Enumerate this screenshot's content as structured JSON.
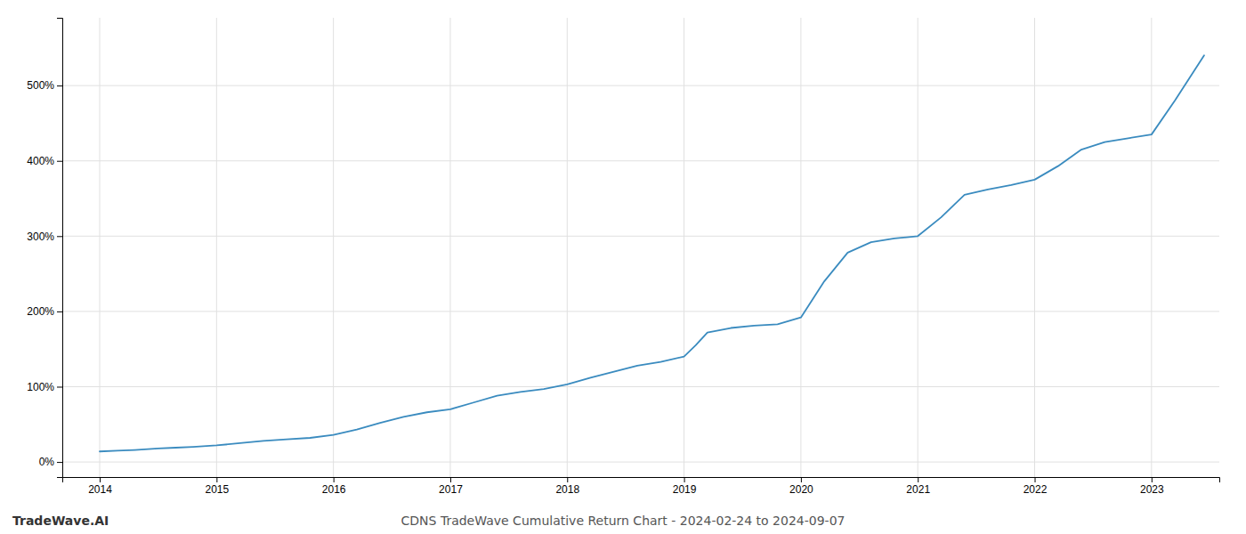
{
  "chart_data": {
    "type": "line",
    "title": "CDNS TradeWave Cumulative Return Chart - 2024-02-24 to 2024-09-07",
    "annotations": [
      "TradeWave.AI"
    ],
    "x": [
      2014.0,
      2014.15,
      2014.3,
      2014.5,
      2014.65,
      2014.8,
      2015.0,
      2015.2,
      2015.4,
      2015.6,
      2015.8,
      2016.0,
      2016.2,
      2016.4,
      2016.6,
      2016.8,
      2017.0,
      2017.2,
      2017.4,
      2017.6,
      2017.8,
      2018.0,
      2018.2,
      2018.4,
      2018.6,
      2018.8,
      2019.0,
      2019.1,
      2019.2,
      2019.4,
      2019.6,
      2019.8,
      2020.0,
      2020.2,
      2020.4,
      2020.6,
      2020.8,
      2021.0,
      2021.2,
      2021.4,
      2021.6,
      2021.8,
      2022.0,
      2022.2,
      2022.4,
      2022.6,
      2022.8,
      2023.0,
      2023.2,
      2023.45
    ],
    "values": [
      14,
      15,
      16,
      18,
      19,
      20,
      22,
      25,
      28,
      30,
      32,
      36,
      43,
      52,
      60,
      66,
      70,
      79,
      88,
      93,
      97,
      103,
      112,
      120,
      128,
      133,
      140,
      155,
      172,
      178,
      181,
      183,
      192,
      240,
      278,
      292,
      297,
      300,
      325,
      355,
      362,
      368,
      375,
      393,
      415,
      425,
      430,
      435,
      480,
      540
    ],
    "color": "#3a8bbf",
    "xlim": [
      2013.68,
      2023.58
    ],
    "xticks": [
      2014,
      2015,
      2016,
      2017,
      2018,
      2019,
      2020,
      2021,
      2022,
      2023
    ],
    "ylim": [
      -20,
      590
    ],
    "yticks": [
      {
        "value": 0,
        "label": "0%"
      },
      {
        "value": 100,
        "label": "100%"
      },
      {
        "value": 200,
        "label": "200%"
      },
      {
        "value": 300,
        "label": "300%"
      },
      {
        "value": 400,
        "label": "400%"
      },
      {
        "value": 500,
        "label": "500%"
      }
    ],
    "grid": true
  }
}
